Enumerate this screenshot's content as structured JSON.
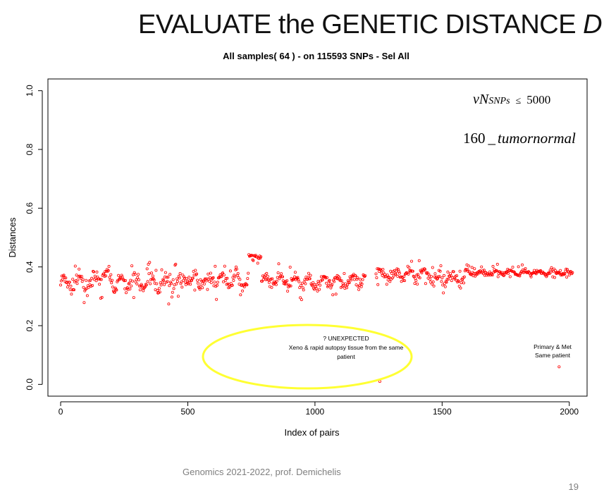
{
  "slide": {
    "title_main": "EVALUATE the GENETIC DISTANCE",
    "title_var": "D",
    "footer": "Genomics 2021-2022, prof. Demichelis",
    "page_number": "19"
  },
  "chart_data": {
    "type": "scatter",
    "title": "All samples( 64 ) - on  115593 SNPs - Sel All",
    "xlabel": "Index of pairs",
    "ylabel": "Distances",
    "xlim": [
      -50,
      2070
    ],
    "ylim": [
      -0.04,
      1.04
    ],
    "xticks": [
      0,
      500,
      1000,
      1500,
      2000
    ],
    "yticks": [
      "0.0",
      "0.2",
      "0.4",
      "0.6",
      "0.8",
      "1.0"
    ],
    "marker": "open-circle",
    "color": "#ff0000",
    "segments": [
      {
        "x_start": 0,
        "x_end": 140,
        "mean": 0.345,
        "spread": 0.035
      },
      {
        "x_start": 140,
        "x_end": 200,
        "mean": 0.365,
        "spread": 0.03
      },
      {
        "x_start": 200,
        "x_end": 480,
        "mean": 0.345,
        "spread": 0.035
      },
      {
        "x_start": 480,
        "x_end": 740,
        "mean": 0.355,
        "spread": 0.03
      },
      {
        "x_start": 740,
        "x_end": 790,
        "mean": 0.435,
        "spread": 0.01
      },
      {
        "x_start": 790,
        "x_end": 1200,
        "mean": 0.35,
        "spread": 0.03
      },
      {
        "x_start": 1240,
        "x_end": 1460,
        "mean": 0.375,
        "spread": 0.03
      },
      {
        "x_start": 1460,
        "x_end": 1590,
        "mean": 0.36,
        "spread": 0.025
      },
      {
        "x_start": 1590,
        "x_end": 2015,
        "mean": 0.38,
        "spread": 0.012
      }
    ],
    "outliers": [
      {
        "x": 1255,
        "y": 0.01
      },
      {
        "x": 1960,
        "y": 0.06
      }
    ],
    "annotations": {
      "formula_top": {
        "var": "vN",
        "sub": "SNPs",
        "op": "≤",
        "value": "5000"
      },
      "formula_bottom": {
        "num": "160",
        "sep": "_",
        "text": "tumornormal"
      },
      "unexpected_line1": "? UNEXPECTED",
      "unexpected_line2": "Xeno & rapid autopsy tissue from the same",
      "unexpected_line3": "patient",
      "primary_line1": "Primary & Met",
      "primary_line2": "Same patient"
    },
    "highlight": {
      "shape": "ellipse",
      "color": "#ffff33"
    }
  }
}
